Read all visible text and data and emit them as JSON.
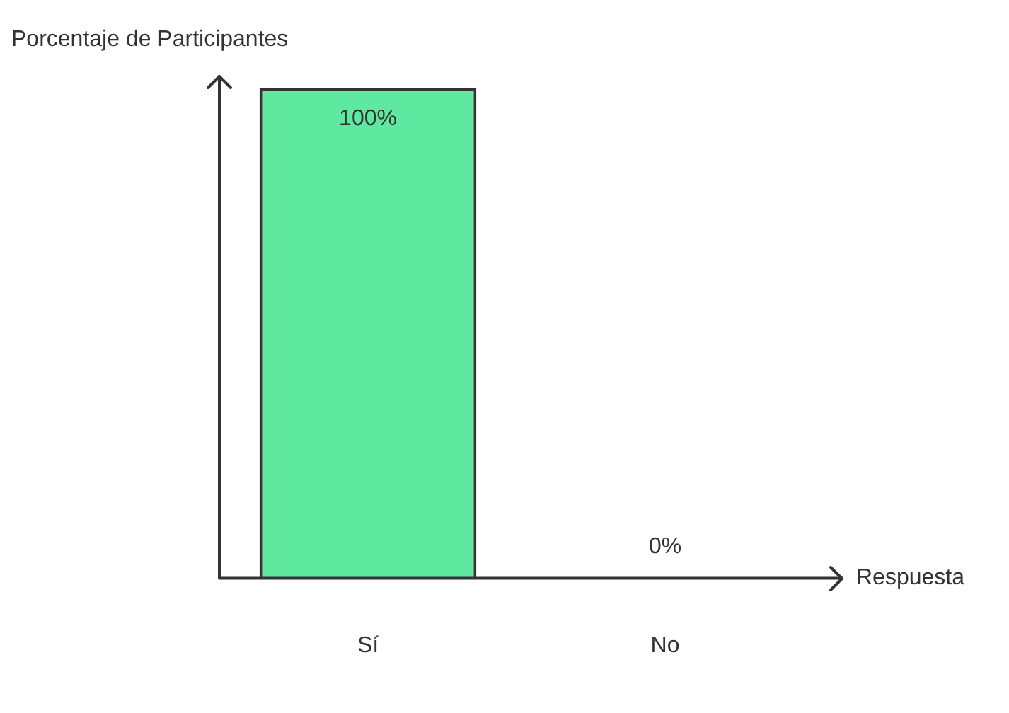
{
  "chart_data": {
    "type": "bar",
    "ylabel": "Porcentaje de Participantes",
    "xlabel": "Respuesta",
    "categories": [
      "Sí",
      "No"
    ],
    "values": [
      100,
      0
    ],
    "color": "#5ee8a0",
    "ylim": [
      0,
      100
    ],
    "value_labels": [
      "100%",
      "0%"
    ],
    "grid": false,
    "legend": false
  }
}
